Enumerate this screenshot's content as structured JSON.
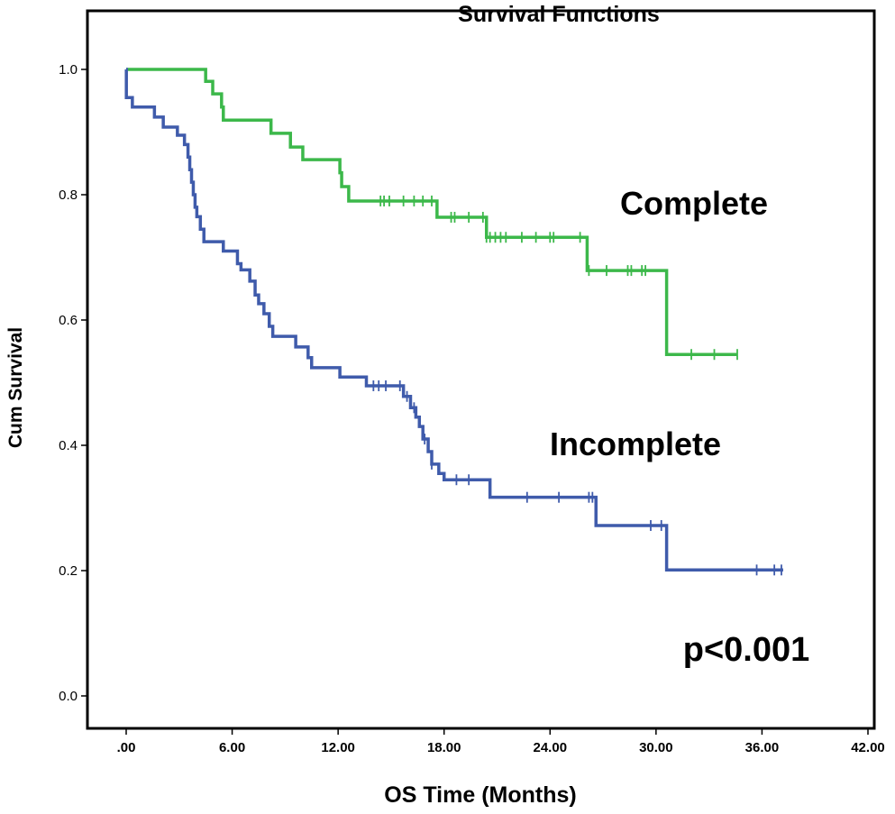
{
  "chart_data": {
    "type": "line",
    "subtype": "kaplan-meier-step",
    "title": "Survival Functions",
    "xlabel": "OS Time (Months)",
    "ylabel": "Cum Survival",
    "xlim": [
      0,
      42
    ],
    "ylim": [
      0,
      1
    ],
    "x_ticks": [
      0,
      6,
      12,
      18,
      24,
      30,
      36,
      42
    ],
    "x_tick_labels": [
      ".00",
      "6.00",
      "12.00",
      "18.00",
      "24.00",
      "30.00",
      "36.00",
      "42.00"
    ],
    "y_ticks": [
      0,
      0.2,
      0.4,
      0.6,
      0.8,
      1.0
    ],
    "y_tick_labels": [
      "0.0",
      "0.2",
      "0.4",
      "0.6",
      "0.8",
      "1.0"
    ],
    "grid": false,
    "legend": "none",
    "annotations": [
      {
        "text": "Complete",
        "series": "Complete"
      },
      {
        "text": "Incomplete",
        "series": "Incomplete"
      },
      {
        "text": "p<0.001"
      }
    ],
    "series": [
      {
        "name": "Complete",
        "color": "#3cb84a",
        "steps": [
          [
            0,
            1.0
          ],
          [
            4.5,
            0.981
          ],
          [
            4.9,
            0.961
          ],
          [
            5.4,
            0.94
          ],
          [
            5.5,
            0.919
          ],
          [
            8.2,
            0.898
          ],
          [
            9.3,
            0.876
          ],
          [
            10.0,
            0.856
          ],
          [
            12.1,
            0.835
          ],
          [
            12.2,
            0.813
          ],
          [
            12.6,
            0.79
          ],
          [
            17.6,
            0.764
          ],
          [
            20.4,
            0.732
          ],
          [
            26.1,
            0.679
          ],
          [
            30.6,
            0.545
          ]
        ],
        "censored": [
          14.4,
          14.6,
          14.9,
          15.7,
          16.3,
          16.8,
          17.3,
          18.4,
          18.6,
          19.4,
          20.2,
          20.4,
          20.6,
          20.9,
          21.2,
          21.5,
          22.4,
          23.2,
          24.0,
          24.2,
          25.7,
          26.2,
          27.2,
          28.4,
          28.6,
          29.2,
          29.4,
          32.0,
          33.3,
          34.6
        ],
        "end": 34.6
      },
      {
        "name": "Incomplete",
        "color": "#3f5bab",
        "steps": [
          [
            0,
            1.0
          ],
          [
            0.01,
            0.955
          ],
          [
            0.35,
            0.94
          ],
          [
            1.6,
            0.924
          ],
          [
            2.1,
            0.908
          ],
          [
            2.9,
            0.895
          ],
          [
            3.3,
            0.88
          ],
          [
            3.5,
            0.86
          ],
          [
            3.6,
            0.84
          ],
          [
            3.7,
            0.82
          ],
          [
            3.8,
            0.8
          ],
          [
            3.9,
            0.78
          ],
          [
            4.0,
            0.765
          ],
          [
            4.2,
            0.745
          ],
          [
            4.4,
            0.725
          ],
          [
            5.5,
            0.71
          ],
          [
            6.3,
            0.69
          ],
          [
            6.5,
            0.68
          ],
          [
            7.0,
            0.662
          ],
          [
            7.3,
            0.64
          ],
          [
            7.5,
            0.626
          ],
          [
            7.8,
            0.61
          ],
          [
            8.1,
            0.59
          ],
          [
            8.3,
            0.574
          ],
          [
            9.6,
            0.557
          ],
          [
            10.3,
            0.54
          ],
          [
            10.5,
            0.524
          ],
          [
            12.1,
            0.509
          ],
          [
            13.6,
            0.495
          ],
          [
            15.7,
            0.478
          ],
          [
            16.1,
            0.46
          ],
          [
            16.4,
            0.445
          ],
          [
            16.6,
            0.43
          ],
          [
            16.8,
            0.41
          ],
          [
            17.1,
            0.39
          ],
          [
            17.3,
            0.37
          ],
          [
            17.7,
            0.355
          ],
          [
            18.0,
            0.345
          ],
          [
            20.6,
            0.317
          ],
          [
            26.6,
            0.272
          ],
          [
            30.6,
            0.201
          ]
        ],
        "censored": [
          14.0,
          14.3,
          14.7,
          15.5,
          15.9,
          16.3,
          16.9,
          17.3,
          18.7,
          19.4,
          22.7,
          24.5,
          26.2,
          26.4,
          29.7,
          30.3,
          35.7,
          36.7,
          37.1
        ],
        "end": 37.2
      }
    ]
  }
}
